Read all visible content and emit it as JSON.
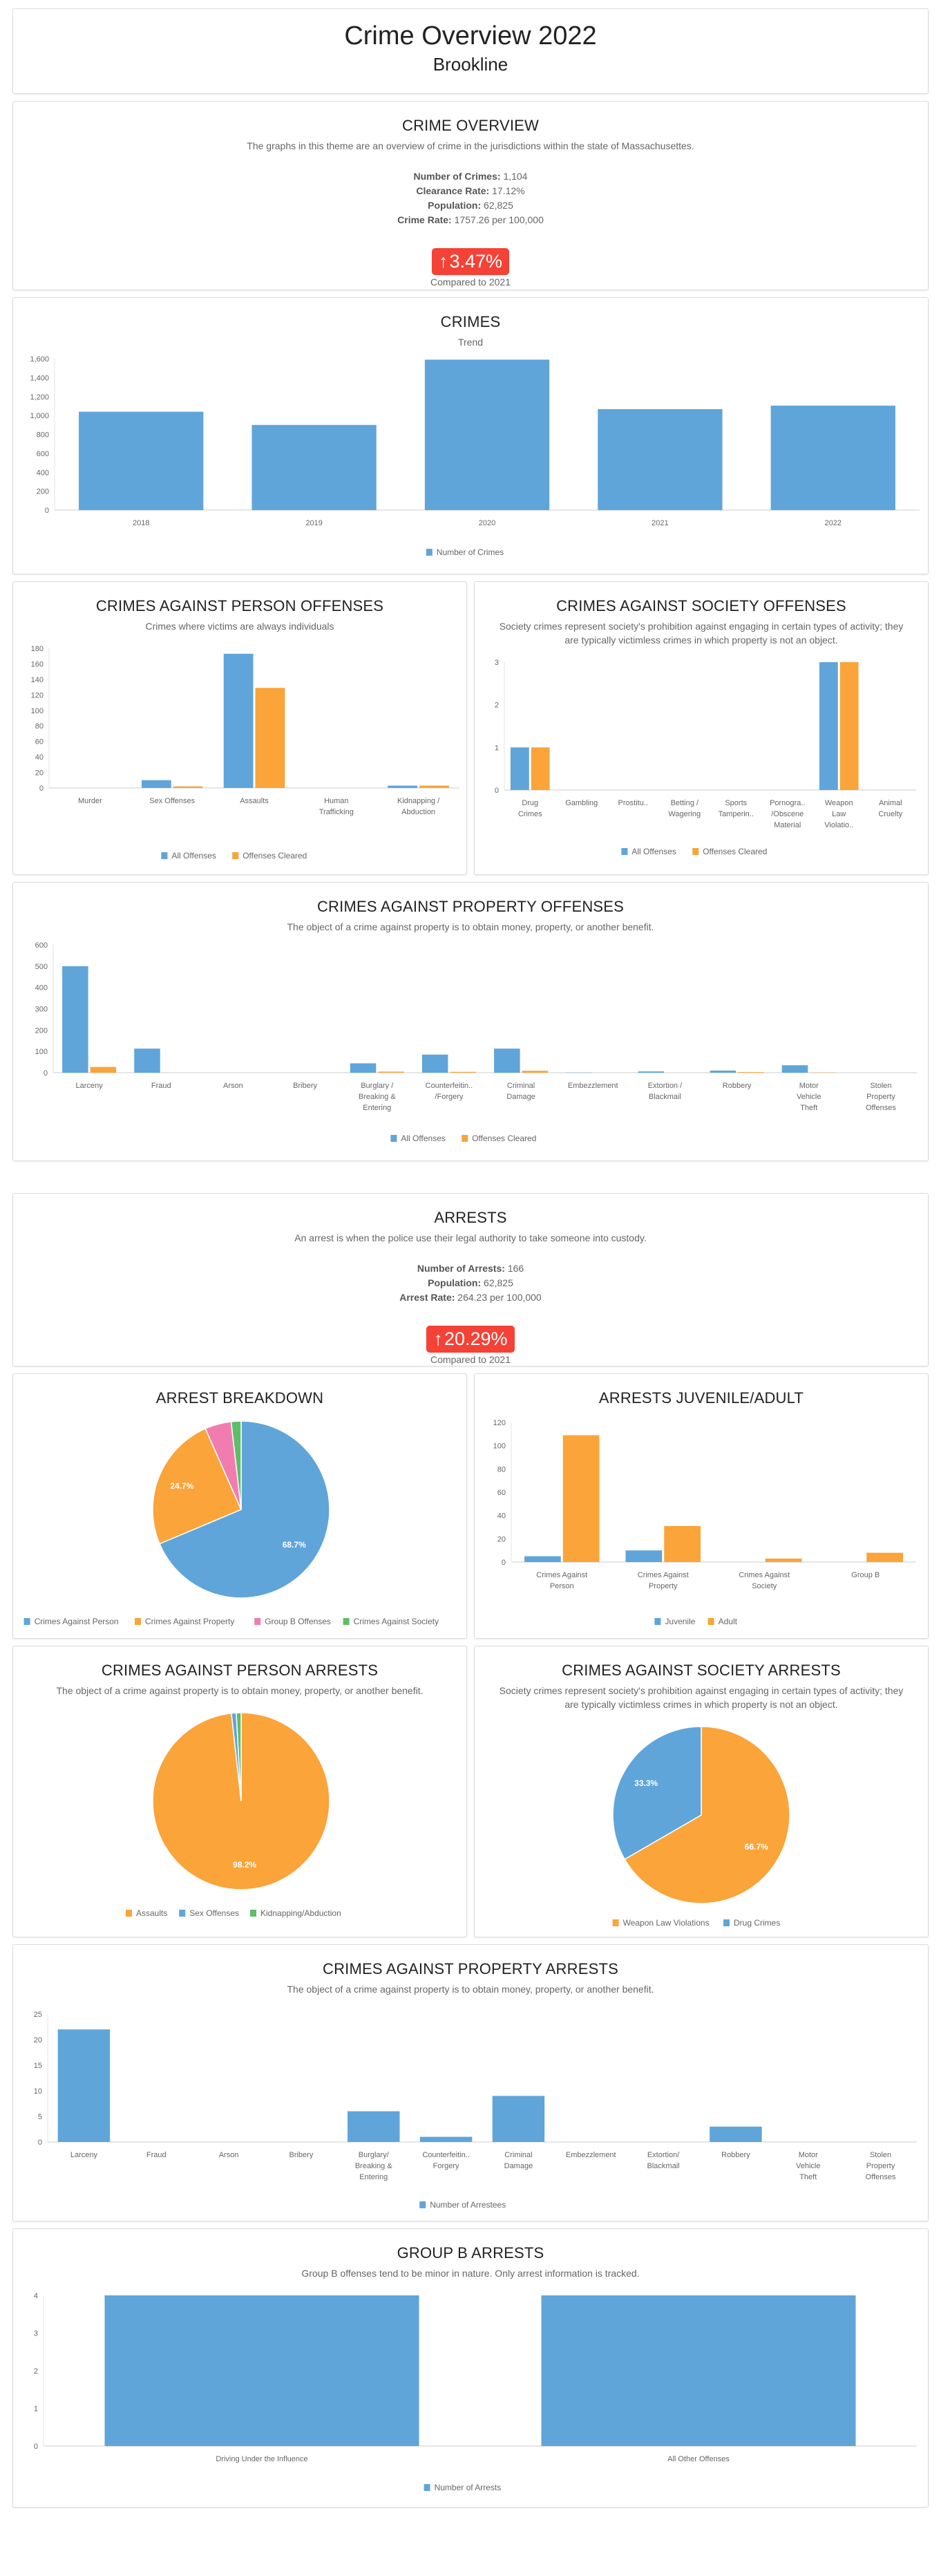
{
  "header": {
    "title": "Crime Overview 2022",
    "subtitle": "Brookline"
  },
  "crime_overview": {
    "title": "CRIME OVERVIEW",
    "description": "The graphs in this theme are an overview of crime in the jurisdictions within the state of Massachusettes.",
    "stats": [
      {
        "label": "Number of Crimes:",
        "value": "1,104"
      },
      {
        "label": "Clearance Rate:",
        "value": "17.12%"
      },
      {
        "label": "Population:",
        "value": "62,825"
      },
      {
        "label": "Crime Rate:",
        "value": "1757.26 per 100,000"
      }
    ],
    "change": "3.47%",
    "change_direction": "up",
    "compared": "Compared to 2021"
  },
  "arrests": {
    "title": "ARRESTS",
    "description": "An arrest is when the police use their legal authority to take someone into custody.",
    "stats": [
      {
        "label": "Number of Arrests:",
        "value": "166"
      },
      {
        "label": "Population:",
        "value": "62,825"
      },
      {
        "label": "Arrest Rate:",
        "value": "264.23 per 100,000"
      }
    ],
    "change": "20.29%",
    "change_direction": "up",
    "compared": "Compared to 2021"
  },
  "colors": {
    "blue": "#5fa5da",
    "orange": "#faa43a",
    "pink": "#f17cb0",
    "green": "#60bd68",
    "badge": "#f44236"
  },
  "chart_data": [
    {
      "type": "bar",
      "title": "CRIMES",
      "subtitle": "Trend",
      "categories": [
        "2018",
        "2019",
        "2020",
        "2021",
        "2022"
      ],
      "series": [
        {
          "name": "Number of Crimes",
          "color": "#5fa5da",
          "values": [
            1040,
            900,
            1590,
            1067,
            1104
          ]
        }
      ],
      "ylim": [
        0,
        1600
      ],
      "yticks": [
        0,
        200,
        400,
        600,
        800,
        1000,
        1200,
        1400,
        1600
      ],
      "ytick_labels": [
        "0",
        "200",
        "400",
        "600",
        "800",
        "1,000",
        "1,200",
        "1,400",
        "1,600"
      ],
      "legend": "bottom-center"
    },
    {
      "type": "bar",
      "title": "CRIMES AGAINST PERSON OFFENSES",
      "subtitle": "Crimes where victims are always individuals",
      "categories": [
        "Murder",
        "Sex Offenses",
        "Assaults",
        "Human Trafficking",
        "Kidnapping / Abduction"
      ],
      "series": [
        {
          "name": "All Offenses",
          "color": "#5fa5da",
          "values": [
            0,
            10,
            173,
            0,
            3
          ]
        },
        {
          "name": "Offenses Cleared",
          "color": "#faa43a",
          "values": [
            0,
            2,
            129,
            0,
            3
          ]
        }
      ],
      "ylim": [
        0,
        180
      ],
      "yticks": [
        0,
        20,
        40,
        60,
        80,
        100,
        120,
        140,
        160,
        180
      ],
      "ytick_labels": [
        "0",
        "20",
        "40",
        "60",
        "80",
        "100",
        "120",
        "140",
        "160",
        "180"
      ],
      "legend": "bottom-center"
    },
    {
      "type": "bar",
      "title": "CRIMES AGAINST SOCIETY OFFENSES",
      "subtitle": "Society crimes represent society's prohibition against engaging in certain types of activity; they are typically victimless crimes in which property is not an object.",
      "categories": [
        "Drug Crimes",
        "Gambling",
        "Prostitu..",
        "Betting / Wagering",
        "Sports Tamperin..",
        "Pornogra.. /Obscene Material",
        "Weapon Law Violatio..",
        "Animal Cruelty"
      ],
      "series": [
        {
          "name": "All Offenses",
          "color": "#5fa5da",
          "values": [
            1,
            0,
            0,
            0,
            0,
            0,
            3,
            0
          ]
        },
        {
          "name": "Offenses Cleared",
          "color": "#faa43a",
          "values": [
            1,
            0,
            0,
            0,
            0,
            0,
            3,
            0
          ]
        }
      ],
      "ylim": [
        0,
        3
      ],
      "yticks": [
        0,
        1,
        2,
        3
      ],
      "ytick_labels": [
        "0",
        "1",
        "2",
        "3"
      ],
      "legend": "bottom-center"
    },
    {
      "type": "bar",
      "title": "CRIMES AGAINST PROPERTY OFFENSES",
      "subtitle": "The object of a crime against property is to obtain money, property, or another benefit.",
      "categories": [
        "Larceny",
        "Fraud",
        "Arson",
        "Bribery",
        "Burglary / Breaking & Entering",
        "Counterfeitin.. /Forgery",
        "Criminal Damage",
        "Embezzlement",
        "Extortion / Blackmail",
        "Robbery",
        "Motor Vehicle Theft",
        "Stolen Property Offenses"
      ],
      "series": [
        {
          "name": "All Offenses",
          "color": "#5fa5da",
          "values": [
            500,
            113,
            0,
            0,
            44,
            85,
            113,
            1,
            6,
            10,
            35,
            0
          ]
        },
        {
          "name": "Offenses Cleared",
          "color": "#faa43a",
          "values": [
            27,
            0,
            0,
            0,
            5,
            4,
            9,
            0,
            0,
            3,
            1,
            0
          ]
        }
      ],
      "ylim": [
        0,
        600
      ],
      "yticks": [
        0,
        100,
        200,
        300,
        400,
        500,
        600
      ],
      "ytick_labels": [
        "0",
        "100",
        "200",
        "300",
        "400",
        "500",
        "600"
      ],
      "legend": "bottom-center"
    },
    {
      "type": "pie",
      "title": "ARREST BREAKDOWN",
      "categories": [
        "Crimes Against Person",
        "Crimes Against Property",
        "Group B Offenses",
        "Crimes Against Society"
      ],
      "values": [
        114,
        41,
        8,
        3
      ],
      "colors": [
        "#5fa5da",
        "#faa43a",
        "#f17cb0",
        "#60bd68"
      ],
      "data_labels": [
        "68.7%",
        "24.7%",
        null,
        null
      ],
      "legend": "bottom-center"
    },
    {
      "type": "bar",
      "title": "ARRESTS JUVENILE/ADULT",
      "categories": [
        "Crimes Against Person",
        "Crimes Against Property",
        "Crimes Against Society",
        "Group B"
      ],
      "series": [
        {
          "name": "Juvenile",
          "color": "#5fa5da",
          "values": [
            5,
            10,
            0,
            0
          ]
        },
        {
          "name": "Adult",
          "color": "#faa43a",
          "values": [
            109,
            31,
            3,
            8
          ]
        }
      ],
      "ylim": [
        0,
        120
      ],
      "yticks": [
        0,
        20,
        40,
        60,
        80,
        100,
        120
      ],
      "ytick_labels": [
        "0",
        "20",
        "40",
        "60",
        "80",
        "100",
        "120"
      ],
      "legend": "bottom-center"
    },
    {
      "type": "pie",
      "title": "CRIMES AGAINST PERSON ARRESTS",
      "subtitle": "The object of a crime against property is to obtain money, property, or another benefit.",
      "categories": [
        "Assaults",
        "Sex Offenses",
        "Kidnapping/Abduction"
      ],
      "values": [
        112,
        1,
        1
      ],
      "colors": [
        "#faa43a",
        "#5fa5da",
        "#60bd68"
      ],
      "data_labels": [
        "98.2%",
        null,
        null
      ],
      "legend": "bottom-center"
    },
    {
      "type": "pie",
      "title": "CRIMES AGAINST SOCIETY ARRESTS",
      "subtitle": "Society crimes represent society's prohibition against engaging in certain types of activity; they are typically victimless crimes in which property is not an object.",
      "categories": [
        "Weapon Law Violations",
        "Drug Crimes"
      ],
      "values": [
        2,
        1
      ],
      "colors": [
        "#faa43a",
        "#5fa5da"
      ],
      "data_labels": [
        "66.7%",
        "33.3%"
      ],
      "legend": "bottom-center"
    },
    {
      "type": "bar",
      "title": "CRIMES AGAINST PROPERTY ARRESTS",
      "subtitle": "The object of a crime against property is to obtain money, property, or another benefit.",
      "categories": [
        "Larceny",
        "Fraud",
        "Arson",
        "Bribery",
        "Burglary/ Breaking & Entering",
        "Counterfeitin.. Forgery",
        "Criminal Damage",
        "Embezzlement",
        "Extortion/ Blackmail",
        "Robbery",
        "Motor Vehicle Theft",
        "Stolen Property Offenses"
      ],
      "series": [
        {
          "name": "Number of Arrestees",
          "color": "#5fa5da",
          "values": [
            22,
            0,
            0,
            0,
            6,
            1,
            9,
            0,
            0,
            3,
            0,
            0
          ]
        }
      ],
      "ylim": [
        0,
        25
      ],
      "yticks": [
        0,
        5,
        10,
        15,
        20,
        25
      ],
      "ytick_labels": [
        "0",
        "5",
        "10",
        "15",
        "20",
        "25"
      ],
      "legend": "bottom-center"
    },
    {
      "type": "bar",
      "title": "GROUP B ARRESTS",
      "subtitle": "Group B offenses tend to be minor in nature. Only arrest information is tracked.",
      "categories": [
        "Driving Under the Influence",
        "All Other Offenses"
      ],
      "series": [
        {
          "name": "Number of Arrests",
          "color": "#5fa5da",
          "values": [
            4,
            4
          ]
        }
      ],
      "ylim": [
        0,
        4
      ],
      "yticks": [
        0,
        1,
        2,
        3,
        4
      ],
      "ytick_labels": [
        "0",
        "1",
        "2",
        "3",
        "4"
      ],
      "legend": "bottom-center"
    }
  ]
}
